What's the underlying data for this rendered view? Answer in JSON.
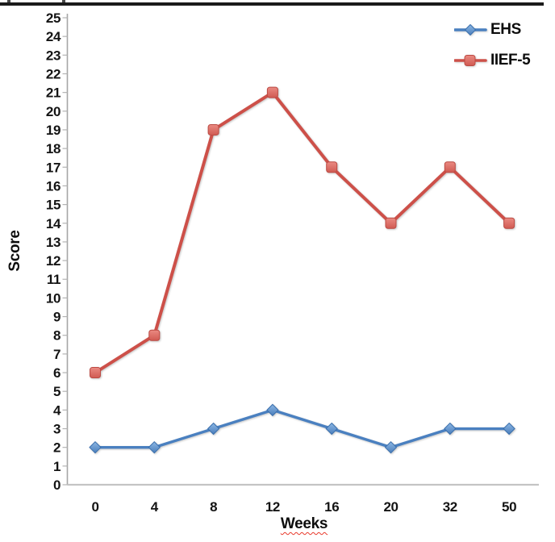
{
  "chart_data": {
    "type": "line",
    "xlabel": "Weeks",
    "ylabel": "Score",
    "categories": [
      "0",
      "4",
      "8",
      "12",
      "16",
      "20",
      "32",
      "50"
    ],
    "ylim": [
      0,
      25
    ],
    "y_tick_step": 1,
    "grid": false,
    "legend_position": "top-right",
    "series": [
      {
        "name": "EHS",
        "marker": "diamond",
        "values": [
          2,
          2,
          3,
          4,
          3,
          2,
          3,
          3
        ],
        "line_color": "#4a80c0",
        "marker_fill_top": "#8db7e4",
        "marker_fill_bottom": "#4a7ebb",
        "marker_stroke": "#3a6fad"
      },
      {
        "name": "IIEF-5",
        "marker": "square",
        "values": [
          6,
          8,
          19,
          21,
          17,
          14,
          17,
          14
        ],
        "line_color": "#cd5049",
        "marker_fill_top": "#ea8a82",
        "marker_fill_bottom": "#d05a52",
        "marker_stroke": "#bc4a43"
      }
    ]
  },
  "styles": {
    "axis_line_color": "#a6a6a6",
    "x_axis_line_color": "#c4c4c4",
    "tick_mark_color": "#b3b3b3",
    "tick_label_color": "#141414",
    "xlabel_underline_color": "#e8392b",
    "top_border_color": "#1b1b1b"
  }
}
